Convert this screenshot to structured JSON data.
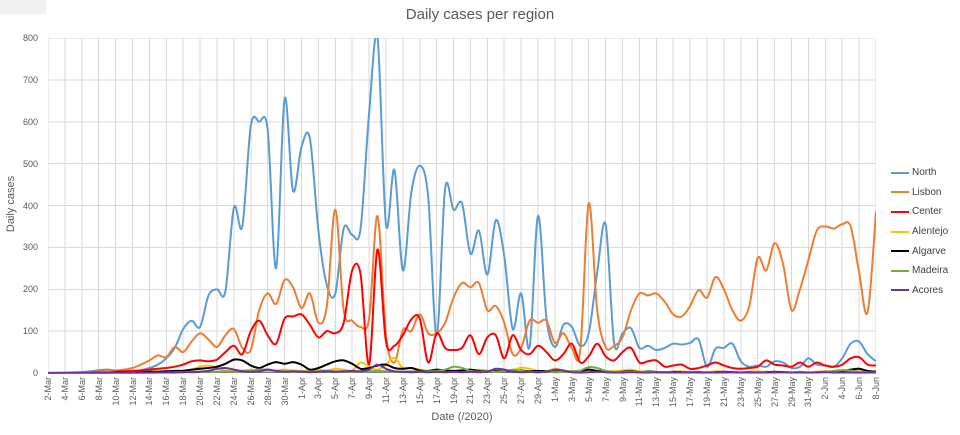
{
  "chart_data": {
    "type": "line",
    "title": "Daily cases per region",
    "xlabel": "Date (/2020)",
    "ylabel": "Daily cases",
    "ylim": [
      0,
      800
    ],
    "y_tick_step": 100,
    "x_tick_step": 2,
    "grid": true,
    "legend_position": "right",
    "gridline_color": "#d9d9d9",
    "axis_line_color": "#7f7f7f",
    "text_color": "#595959",
    "categories": [
      "2-Mar",
      "3-Mar",
      "4-Mar",
      "5-Mar",
      "6-Mar",
      "7-Mar",
      "8-Mar",
      "9-Mar",
      "10-Mar",
      "11-Mar",
      "12-Mar",
      "13-Mar",
      "14-Mar",
      "15-Mar",
      "16-Mar",
      "17-Mar",
      "18-Mar",
      "19-Mar",
      "20-Mar",
      "21-Mar",
      "22-Mar",
      "23-Mar",
      "24-Mar",
      "25-Mar",
      "26-Mar",
      "27-Mar",
      "28-Mar",
      "29-Mar",
      "30-Mar",
      "31-Mar",
      "1-Apr",
      "2-Apr",
      "3-Apr",
      "4-Apr",
      "5-Apr",
      "6-Apr",
      "7-Apr",
      "8-Apr",
      "9-Apr",
      "10-Apr",
      "11-Apr",
      "12-Apr",
      "13-Apr",
      "14-Apr",
      "15-Apr",
      "16-Apr",
      "17-Apr",
      "18-Apr",
      "19-Apr",
      "20-Apr",
      "21-Apr",
      "22-Apr",
      "23-Apr",
      "24-Apr",
      "25-Apr",
      "26-Apr",
      "27-Apr",
      "28-Apr",
      "29-Apr",
      "30-Apr",
      "1-May",
      "2-May",
      "3-May",
      "4-May",
      "5-May",
      "6-May",
      "7-May",
      "8-May",
      "9-May",
      "10-May",
      "11-May",
      "12-May",
      "13-May",
      "14-May",
      "15-May",
      "16-May",
      "17-May",
      "18-May",
      "19-May",
      "20-May",
      "21-May",
      "22-May",
      "23-May",
      "24-May",
      "25-May",
      "26-May",
      "27-May",
      "28-May",
      "29-May",
      "30-May",
      "31-May",
      "1-Jun",
      "2-Jun",
      "3-Jun",
      "4-Jun",
      "5-Jun",
      "6-Jun",
      "7-Jun",
      "8-Jun"
    ],
    "series": [
      {
        "name": "North",
        "color": "#5B9BD5",
        "values": [
          0,
          0,
          1,
          1,
          2,
          4,
          7,
          8,
          6,
          4,
          5,
          7,
          12,
          20,
          35,
          60,
          105,
          125,
          110,
          185,
          200,
          195,
          395,
          350,
          590,
          600,
          580,
          250,
          655,
          435,
          540,
          560,
          340,
          210,
          190,
          345,
          330,
          345,
          620,
          800,
          355,
          485,
          245,
          430,
          495,
          420,
          90,
          440,
          390,
          405,
          285,
          340,
          235,
          365,
          280,
          105,
          190,
          62,
          375,
          130,
          62,
          115,
          110,
          65,
          95,
          240,
          355,
          72,
          95,
          107,
          60,
          65,
          55,
          60,
          70,
          68,
          72,
          80,
          15,
          58,
          60,
          70,
          28,
          15,
          18,
          15,
          28,
          25,
          12,
          15,
          35,
          20,
          18,
          15,
          35,
          70,
          75,
          45,
          28
        ]
      },
      {
        "name": "Lisbon",
        "color": "#ED7D31",
        "values": [
          0,
          0,
          1,
          1,
          2,
          3,
          4,
          5,
          6,
          8,
          12,
          20,
          30,
          42,
          38,
          62,
          50,
          75,
          95,
          80,
          62,
          90,
          105,
          60,
          55,
          150,
          190,
          165,
          222,
          205,
          155,
          190,
          120,
          160,
          390,
          150,
          125,
          110,
          130,
          375,
          90,
          25,
          103,
          100,
          140,
          95,
          95,
          120,
          180,
          215,
          205,
          215,
          150,
          160,
          120,
          45,
          60,
          125,
          120,
          125,
          72,
          95,
          60,
          55,
          405,
          150,
          62,
          65,
          85,
          150,
          190,
          185,
          190,
          170,
          140,
          135,
          160,
          198,
          180,
          229,
          200,
          150,
          125,
          160,
          275,
          245,
          310,
          260,
          150,
          200,
          270,
          340,
          350,
          345,
          355,
          350,
          240,
          145,
          385
        ]
      },
      {
        "name": "Center",
        "color": "#FF0000",
        "values": [
          0,
          0,
          0,
          1,
          1,
          1,
          2,
          2,
          3,
          4,
          5,
          6,
          8,
          10,
          12,
          15,
          20,
          28,
          30,
          28,
          32,
          50,
          65,
          45,
          100,
          125,
          90,
          70,
          130,
          135,
          140,
          115,
          85,
          100,
          95,
          120,
          245,
          235,
          20,
          295,
          75,
          65,
          90,
          128,
          130,
          25,
          95,
          60,
          55,
          60,
          90,
          45,
          85,
          90,
          35,
          90,
          55,
          45,
          65,
          50,
          30,
          45,
          70,
          25,
          40,
          70,
          40,
          30,
          50,
          60,
          25,
          28,
          30,
          15,
          18,
          20,
          10,
          12,
          18,
          25,
          18,
          12,
          10,
          12,
          15,
          30,
          20,
          18,
          15,
          25,
          15,
          25,
          18,
          15,
          20,
          35,
          38,
          20,
          18
        ]
      },
      {
        "name": "Alentejo",
        "color": "#FFC000",
        "values": [
          0,
          0,
          0,
          0,
          0,
          0,
          0,
          1,
          1,
          1,
          2,
          2,
          3,
          4,
          3,
          5,
          6,
          8,
          15,
          18,
          12,
          6,
          5,
          6,
          8,
          6,
          5,
          6,
          8,
          6,
          5,
          6,
          8,
          6,
          10,
          8,
          6,
          25,
          15,
          8,
          20,
          36,
          12,
          12,
          8,
          5,
          6,
          5,
          4,
          6,
          5,
          8,
          6,
          4,
          5,
          6,
          13,
          10,
          5,
          4,
          10,
          6,
          4,
          3,
          5,
          4,
          3,
          4,
          6,
          8,
          4,
          3,
          3,
          2,
          3,
          4,
          2,
          3,
          2,
          4,
          3,
          2,
          2,
          3,
          4,
          3,
          2,
          3,
          2,
          3,
          2,
          3,
          4,
          3,
          5,
          6,
          4,
          3,
          5
        ]
      },
      {
        "name": "Algarve",
        "color": "#000000",
        "values": [
          0,
          0,
          0,
          0,
          0,
          0,
          0,
          0,
          1,
          1,
          1,
          2,
          3,
          3,
          4,
          5,
          5,
          8,
          10,
          12,
          15,
          22,
          32,
          30,
          18,
          12,
          20,
          26,
          22,
          26,
          20,
          8,
          12,
          20,
          28,
          30,
          22,
          10,
          12,
          18,
          20,
          12,
          10,
          12,
          6,
          5,
          8,
          6,
          5,
          6,
          8,
          5,
          4,
          5,
          4,
          5,
          6,
          4,
          5,
          4,
          3,
          4,
          3,
          5,
          8,
          5,
          3,
          2,
          3,
          4,
          2,
          3,
          2,
          2,
          3,
          2,
          1,
          2,
          1,
          2,
          3,
          2,
          1,
          2,
          1,
          2,
          3,
          2,
          1,
          2,
          1,
          2,
          3,
          2,
          4,
          8,
          10,
          5,
          3
        ]
      },
      {
        "name": "Madeira",
        "color": "#70AD47",
        "values": [
          0,
          0,
          0,
          0,
          0,
          0,
          0,
          0,
          0,
          0,
          0,
          0,
          0,
          1,
          1,
          2,
          2,
          3,
          3,
          2,
          3,
          4,
          3,
          4,
          5,
          8,
          8,
          5,
          4,
          3,
          4,
          3,
          4,
          5,
          4,
          3,
          4,
          3,
          4,
          5,
          4,
          3,
          3,
          4,
          3,
          4,
          5,
          8,
          15,
          12,
          5,
          3,
          4,
          3,
          4,
          8,
          5,
          3,
          2,
          3,
          2,
          3,
          4,
          6,
          14,
          12,
          5,
          3,
          2,
          3,
          2,
          5,
          3,
          2,
          2,
          1,
          2,
          1,
          2,
          1,
          2,
          1,
          2,
          1,
          2,
          1,
          2,
          1,
          1,
          2,
          1,
          2,
          3,
          5,
          7,
          6,
          3,
          2,
          2
        ]
      },
      {
        "name": "Acores",
        "color": "#7030A0",
        "values": [
          0,
          0,
          0,
          0,
          0,
          0,
          0,
          0,
          0,
          0,
          0,
          0,
          0,
          1,
          1,
          1,
          2,
          2,
          3,
          5,
          10,
          12,
          8,
          4,
          3,
          4,
          8,
          5,
          3,
          4,
          3,
          2,
          3,
          4,
          3,
          4,
          5,
          4,
          8,
          20,
          10,
          4,
          3,
          2,
          3,
          2,
          3,
          2,
          3,
          2,
          3,
          2,
          3,
          10,
          8,
          3,
          2,
          3,
          2,
          3,
          8,
          6,
          2,
          1,
          2,
          3,
          2,
          1,
          1,
          2,
          1,
          1,
          2,
          1,
          1,
          1,
          2,
          1,
          1,
          1,
          1,
          2,
          1,
          1,
          1,
          1,
          1,
          2,
          1,
          1,
          1,
          1,
          2,
          1,
          1,
          1,
          0,
          1,
          1
        ]
      }
    ]
  }
}
